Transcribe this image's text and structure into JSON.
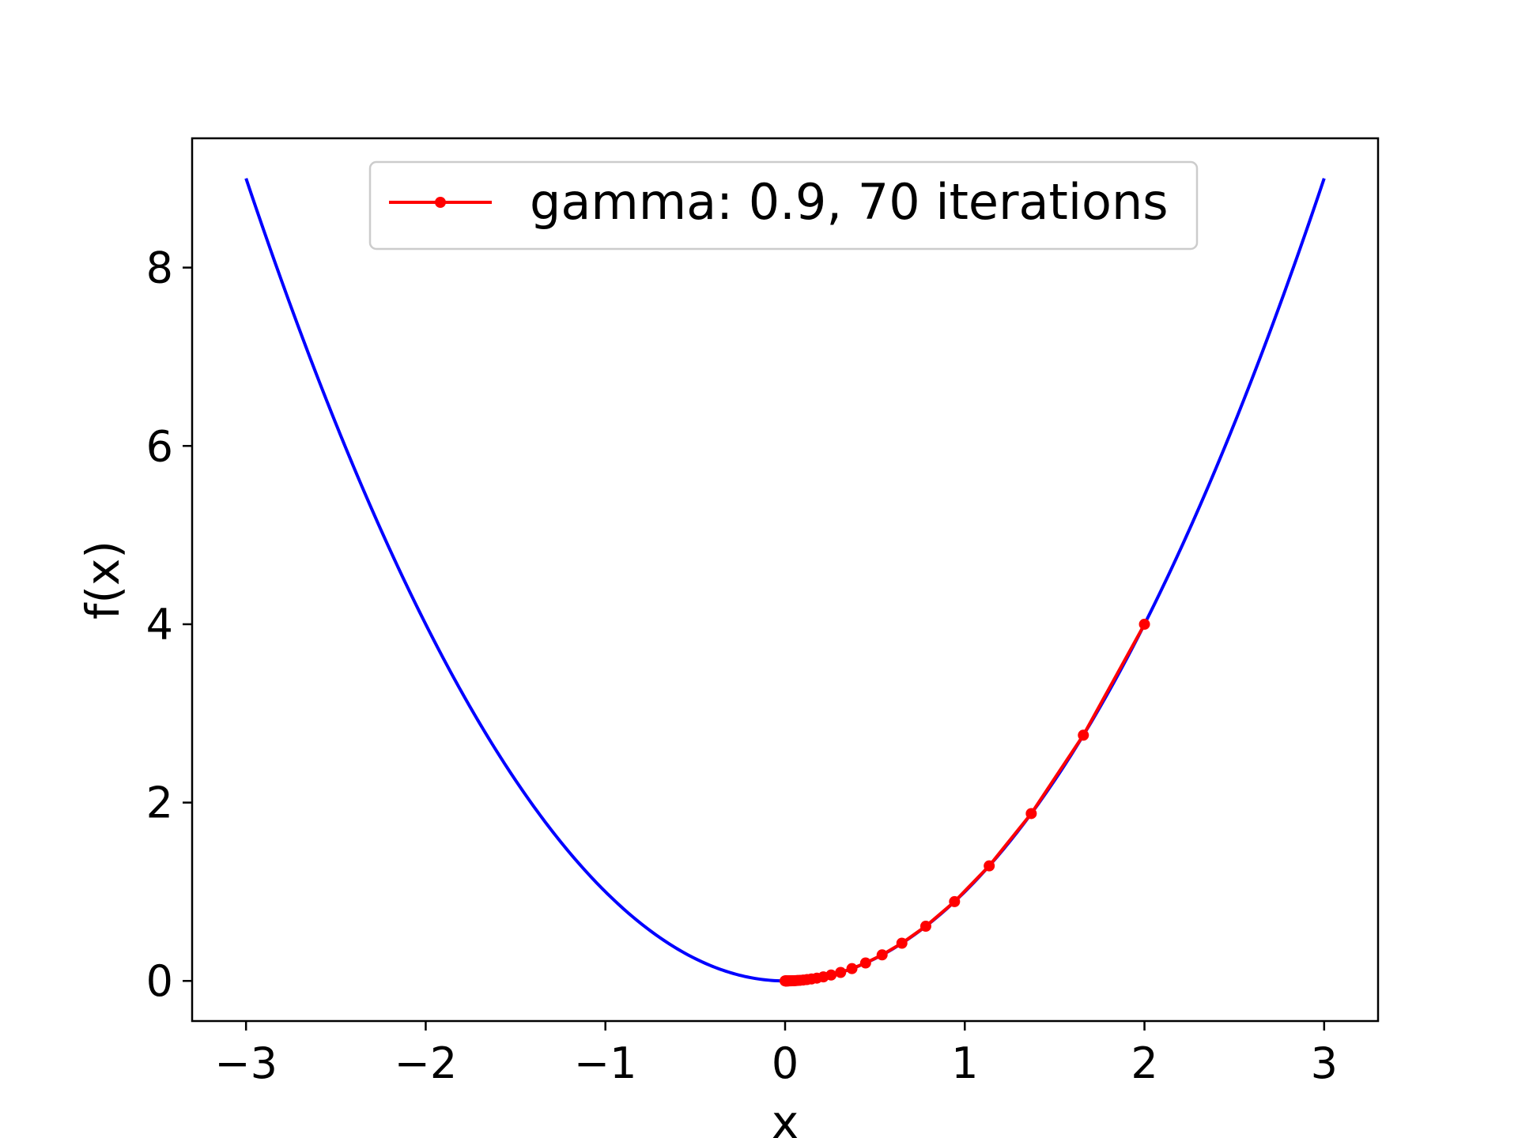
{
  "chart_data": {
    "type": "line",
    "title": "",
    "xlabel": "x",
    "ylabel": "f(x)",
    "xlim": [
      -3.3,
      3.3
    ],
    "ylim": [
      -0.45,
      9.45
    ],
    "grid": false,
    "legend_position": "top-center",
    "x_ticks": [
      -3,
      -2,
      -1,
      0,
      1,
      2,
      3
    ],
    "x_tick_labels": [
      "−3",
      "−2",
      "−1",
      "0",
      "1",
      "2",
      "3"
    ],
    "y_ticks": [
      0,
      2,
      4,
      6,
      8
    ],
    "y_tick_labels": [
      "0",
      "2",
      "4",
      "6",
      "8"
    ],
    "curve": {
      "function": "x^2",
      "x_range": [
        -3,
        3
      ],
      "color": "#0000ff"
    },
    "series": [
      {
        "name": "gamma: 0.9, 70 iterations",
        "color": "#ff0000",
        "marker": "circle",
        "x": [
          2.0,
          1.66,
          1.37,
          1.136,
          0.943,
          0.783,
          0.65,
          0.54,
          0.448,
          0.372,
          0.309,
          0.256,
          0.213,
          0.177,
          0.147,
          0.122,
          0.101,
          0.084,
          0.07,
          0.058,
          0.048,
          0.04,
          0.033,
          0.027,
          0.023,
          0.019,
          0.016,
          0.013,
          0.011,
          0.009,
          0.007,
          0.006,
          0.005,
          0.004,
          0.003,
          0.002,
          0.001,
          0.0
        ],
        "y": [
          4.0,
          2.756,
          1.877,
          1.29,
          0.889,
          0.613,
          0.423,
          0.292,
          0.201,
          0.138,
          0.095,
          0.066,
          0.045,
          0.031,
          0.022,
          0.015,
          0.01,
          0.007,
          0.005,
          0.003,
          0.002,
          0.002,
          0.001,
          0.001,
          0.001,
          0.0,
          0.0,
          0.0,
          0.0,
          0.0,
          0.0,
          0.0,
          0.0,
          0.0,
          0.0,
          0.0,
          0.0,
          0.0
        ]
      }
    ]
  }
}
